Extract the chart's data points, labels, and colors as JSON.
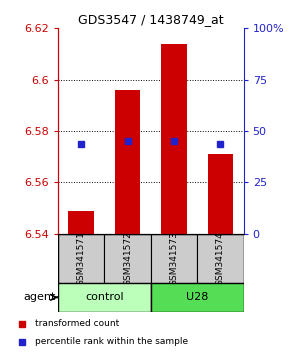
{
  "title": "GDS3547 / 1438749_at",
  "samples": [
    "GSM341571",
    "GSM341572",
    "GSM341573",
    "GSM341574"
  ],
  "bar_values": [
    6.549,
    6.596,
    6.614,
    6.571
  ],
  "bar_base": 6.54,
  "percentile_values": [
    6.575,
    6.576,
    6.576,
    6.575
  ],
  "ylim_left": [
    6.54,
    6.62
  ],
  "ylim_right": [
    0,
    100
  ],
  "yticks_left": [
    6.54,
    6.56,
    6.58,
    6.6,
    6.62
  ],
  "yticks_right": [
    0,
    25,
    50,
    75,
    100
  ],
  "bar_color": "#cc0000",
  "dot_color": "#2222cc",
  "groups": [
    {
      "label": "control",
      "samples": [
        0,
        1
      ],
      "color": "#bbffbb"
    },
    {
      "label": "U28",
      "samples": [
        2,
        3
      ],
      "color": "#55dd55"
    }
  ],
  "legend_items": [
    {
      "label": "transformed count",
      "color": "#cc0000"
    },
    {
      "label": "percentile rank within the sample",
      "color": "#2222cc"
    }
  ],
  "left_axis_color": "#cc0000",
  "right_axis_color": "#2222cc",
  "gridline_ticks": [
    6.56,
    6.58,
    6.6
  ]
}
